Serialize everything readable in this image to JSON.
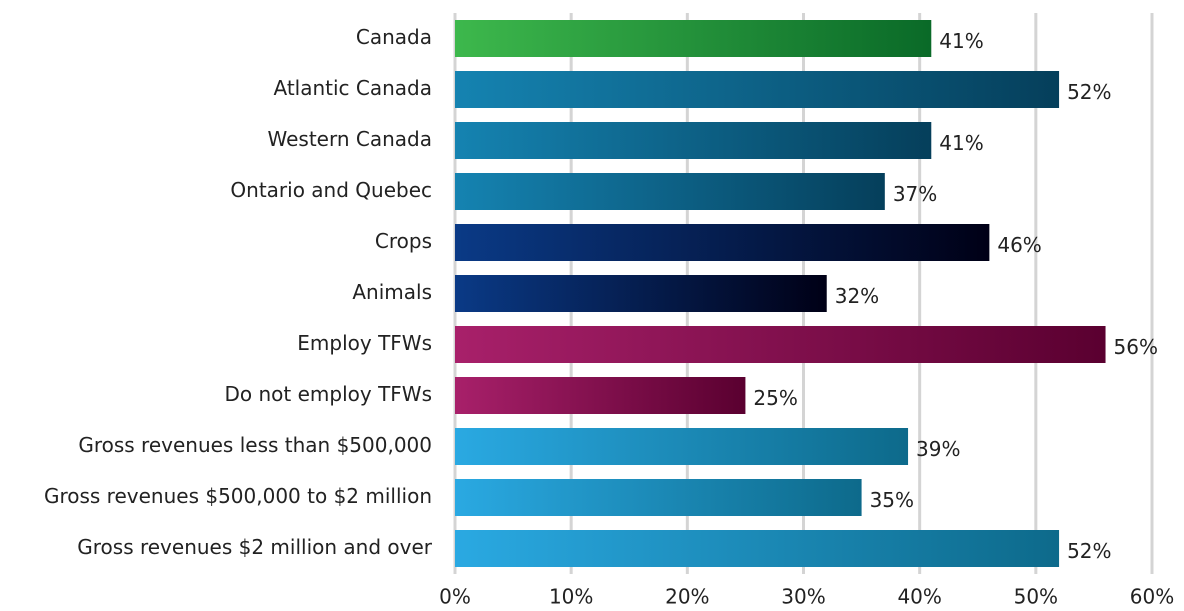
{
  "chart_data": {
    "type": "barh",
    "categories": [
      "Canada",
      "Atlantic Canada",
      "Western Canada",
      "Ontario and Quebec",
      "Crops",
      "Animals",
      "Employ TFWs",
      "Do not employ TFWs",
      "Gross revenues less than $500,000",
      "Gross revenues $500,000 to $2 million",
      "Gross revenues $2 million and over"
    ],
    "values": [
      41,
      52,
      41,
      37,
      46,
      32,
      56,
      25,
      39,
      35,
      52
    ],
    "value_labels": [
      "41%",
      "52%",
      "41%",
      "37%",
      "46%",
      "32%",
      "56%",
      "25%",
      "39%",
      "35%",
      "52%"
    ],
    "colors": [
      [
        "#3db84c",
        "#0a6a28"
      ],
      [
        "#1583b1",
        "#053f5b"
      ],
      [
        "#1583b1",
        "#053f5b"
      ],
      [
        "#1583b1",
        "#053f5b"
      ],
      [
        "#0a3a86",
        "#000016"
      ],
      [
        "#0a3a86",
        "#000016"
      ],
      [
        "#a8206a",
        "#5a0030"
      ],
      [
        "#a8206a",
        "#5a0030"
      ],
      [
        "#2aa9e2",
        "#0d6a8b"
      ],
      [
        "#2aa9e2",
        "#0d6a8b"
      ],
      [
        "#2aa9e2",
        "#0d6a8b"
      ]
    ],
    "xlim": [
      0,
      60
    ],
    "xticks": [
      {
        "value": 0,
        "label": "0%"
      },
      {
        "value": 10,
        "label": "10%"
      },
      {
        "value": 20,
        "label": "20%"
      },
      {
        "value": 30,
        "label": "30%"
      },
      {
        "value": 40,
        "label": "40%"
      },
      {
        "value": 50,
        "label": "50%"
      },
      {
        "value": 60,
        "label": "60%"
      }
    ],
    "grid": true
  }
}
